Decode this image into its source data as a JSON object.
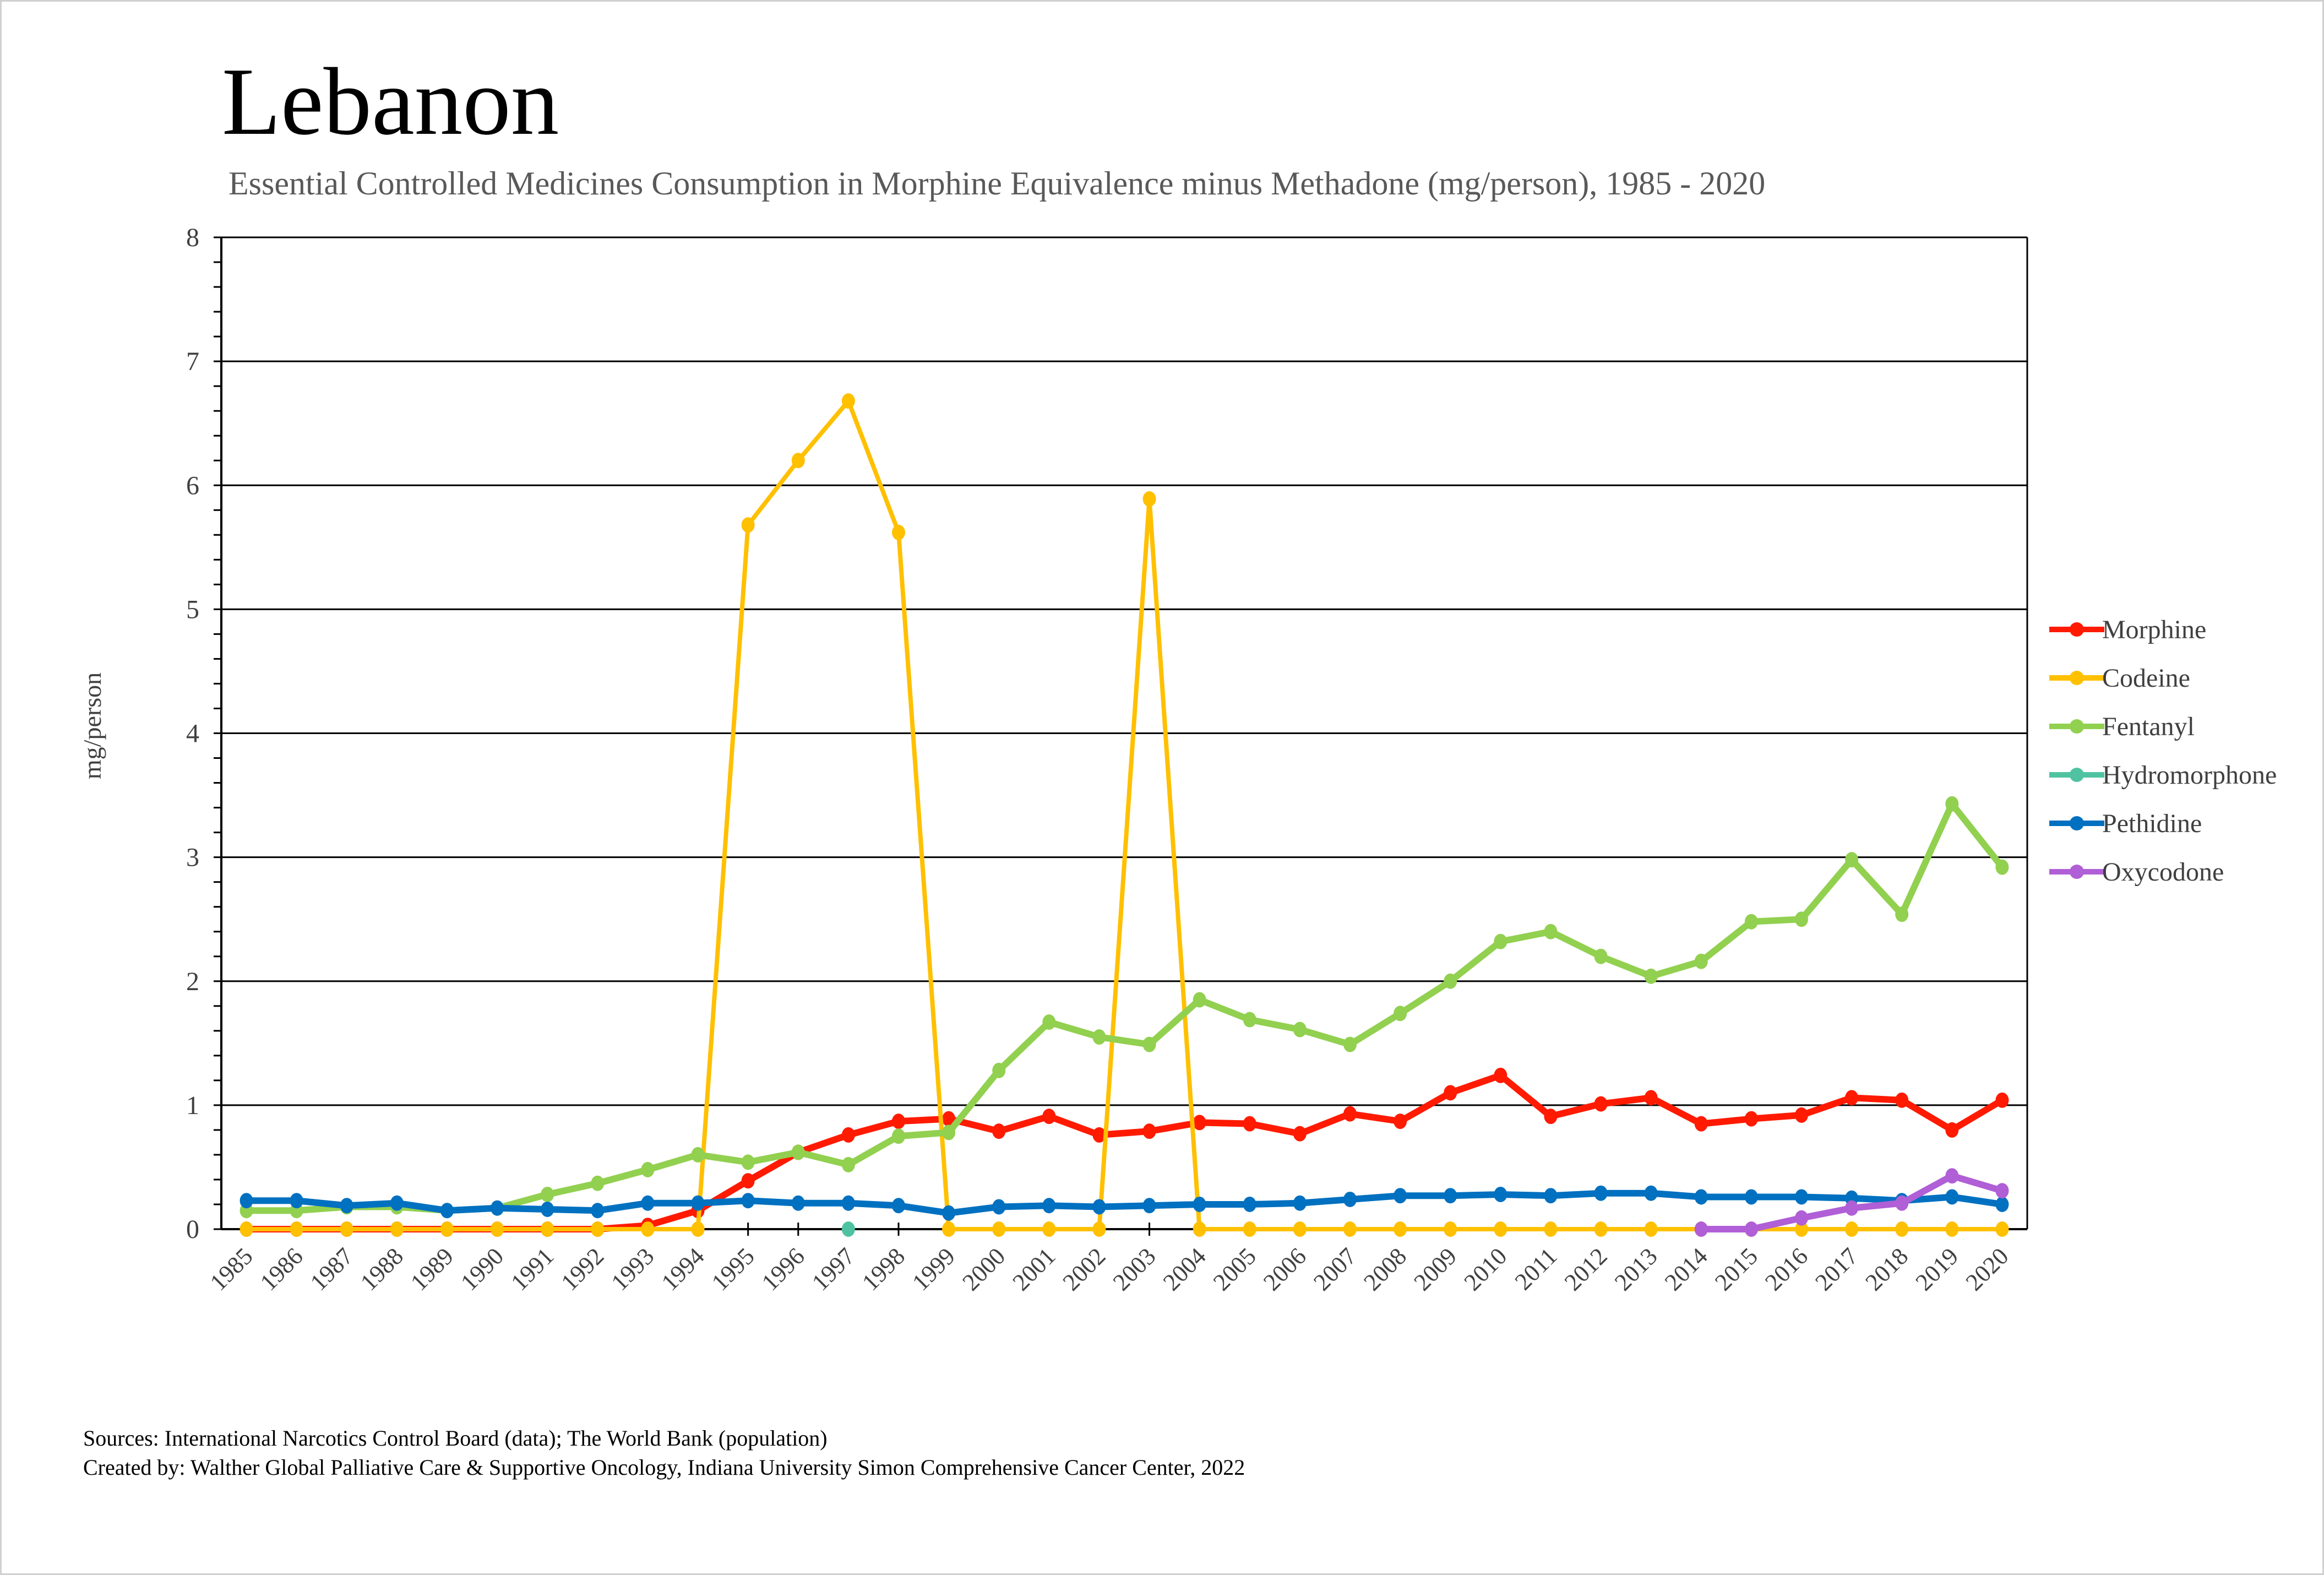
{
  "chart_data": {
    "type": "line",
    "title": "Lebanon",
    "subtitle": "Essential Controlled Medicines Consumption in Morphine Equivalence minus Methadone (mg/person), 1985 - 2020",
    "xlabel": "",
    "ylabel": "mg/person",
    "ylim": [
      0,
      8
    ],
    "yticks": [
      "0",
      "1",
      "2",
      "3",
      "4",
      "5",
      "6",
      "7",
      "8"
    ],
    "grid": true,
    "legend_position": "right",
    "categories": [
      "1985",
      "1986",
      "1987",
      "1988",
      "1989",
      "1990",
      "1991",
      "1992",
      "1993",
      "1994",
      "1995",
      "1996",
      "1997",
      "1998",
      "1999",
      "2000",
      "2001",
      "2002",
      "2003",
      "2004",
      "2005",
      "2006",
      "2007",
      "2008",
      "2009",
      "2010",
      "2011",
      "2012",
      "2013",
      "2014",
      "2015",
      "2016",
      "2017",
      "2018",
      "2019",
      "2020"
    ],
    "series": [
      {
        "name": "Morphine",
        "color": "#ff1a00",
        "values": [
          0,
          0,
          0,
          0,
          0,
          0,
          0,
          0,
          0.03,
          0.15,
          0.39,
          0.62,
          0.76,
          0.87,
          0.89,
          0.79,
          0.91,
          0.76,
          0.79,
          0.86,
          0.85,
          0.77,
          0.93,
          0.87,
          1.1,
          1.24,
          0.91,
          1.01,
          1.06,
          0.85,
          0.89,
          0.92,
          1.06,
          1.04,
          0.8,
          1.04
        ]
      },
      {
        "name": "Codeine",
        "color": "#ffc000",
        "values": [
          0,
          0,
          0,
          0,
          0,
          0,
          0,
          0,
          0,
          0,
          5.68,
          6.2,
          6.68,
          5.62,
          0,
          0,
          0,
          0,
          5.89,
          0,
          0,
          0,
          0,
          0,
          0,
          0,
          0,
          0,
          0,
          0,
          0,
          0,
          0,
          0,
          0,
          0
        ]
      },
      {
        "name": "Fentanyl",
        "color": "#92d050",
        "values": [
          0.15,
          0.15,
          0.18,
          0.18,
          0.15,
          0.17,
          0.28,
          0.37,
          0.48,
          0.6,
          0.54,
          0.62,
          0.52,
          0.75,
          0.78,
          1.28,
          1.67,
          1.55,
          1.49,
          1.85,
          1.69,
          1.61,
          1.49,
          1.74,
          2.0,
          2.32,
          2.4,
          2.2,
          2.04,
          2.16,
          2.48,
          2.5,
          2.98,
          2.54,
          3.43,
          2.92
        ]
      },
      {
        "name": "Hydromorphone",
        "color": "#4fc3a1",
        "values": [
          null,
          null,
          null,
          null,
          null,
          null,
          null,
          null,
          null,
          null,
          null,
          null,
          0,
          null,
          null,
          null,
          null,
          null,
          null,
          null,
          null,
          null,
          null,
          null,
          null,
          null,
          null,
          null,
          null,
          null,
          null,
          null,
          null,
          null,
          null,
          null
        ]
      },
      {
        "name": "Pethidine",
        "color": "#0070c0",
        "values": [
          0.23,
          0.23,
          0.19,
          0.21,
          0.15,
          0.17,
          0.16,
          0.15,
          0.21,
          0.21,
          0.23,
          0.21,
          0.21,
          0.19,
          0.13,
          0.18,
          0.19,
          0.18,
          0.19,
          0.2,
          0.2,
          0.21,
          0.24,
          0.27,
          0.27,
          0.28,
          0.27,
          0.29,
          0.29,
          0.26,
          0.26,
          0.26,
          0.25,
          0.23,
          0.26,
          0.2
        ]
      },
      {
        "name": "Oxycodone",
        "color": "#b05fd6",
        "values": [
          null,
          null,
          null,
          null,
          null,
          null,
          null,
          null,
          null,
          null,
          null,
          null,
          null,
          null,
          null,
          null,
          null,
          null,
          null,
          null,
          null,
          null,
          null,
          null,
          null,
          null,
          null,
          null,
          null,
          0,
          0,
          0.09,
          0.17,
          0.21,
          0.43,
          0.31
        ]
      }
    ]
  },
  "footer": {
    "sources": "Sources: International Narcotics Control Board (data); The World Bank (population)",
    "created_by": "Created by: Walther Global Palliative Care & Supportive Oncology, Indiana University Simon Comprehensive Cancer Center, 2022"
  }
}
